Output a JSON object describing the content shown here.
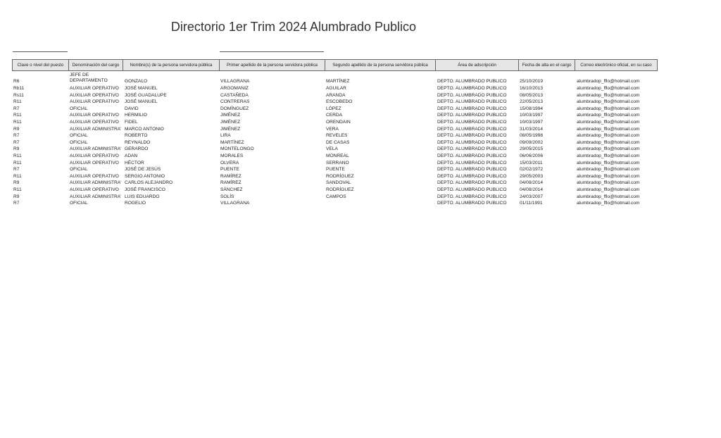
{
  "title": "Directorio 1er Trim 2024 Alumbrado Publico",
  "headers": [
    "Clave o nivel del puesto",
    "Denominación del cargo",
    "Nombre(s) de la persona servidora pública",
    "Primer apellido de la persona servidora pública",
    "Segundo apellido de la persona servidora pública",
    "Área de adscripción",
    "Fecha de alta en el cargo",
    "Correo electrónico oficial, en su caso"
  ],
  "rows": [
    [
      "R6",
      "JEFE DE DEPARTAMENTO",
      "GONZALO",
      "VILLAGRANA",
      " MARTÍNEZ",
      "DEPTO. ALUMBRADO PUBLICO",
      "25/10/2019",
      "alumbradop_fflo@hotmail.com"
    ],
    [
      "Rb11",
      "AUXILIAR  OPERATIVO",
      "JOSÉ MANUEL",
      "ARGOMANIZ",
      "AGUILAR",
      "DEPTO. ALUMBRADO PUBLICO",
      "16/10/2013",
      "alumbradop_fflo@hotmail.com"
    ],
    [
      "Rs11",
      "AUXILIAR  OPERATIVO",
      "JOSÉ GUADALUPE",
      "CASTAÑEDA",
      "ARANDA",
      "DEPTO. ALUMBRADO PUBLICO",
      "08/05/2013",
      "alumbradop_fflo@hotmail.com"
    ],
    [
      "R11",
      "AUXILIAR  OPERATIVO",
      "JOSÉ MANUEL",
      "CONTRERAS",
      " ESCOBEDO",
      "DEPTO. ALUMBRADO PUBLICO",
      "22/05/2013",
      "alumbradop_fflo@hotmail.com"
    ],
    [
      "R7",
      "OFICIAL",
      "DAVID",
      "DOMÍNGUEZ",
      "LÓPEZ",
      "DEPTO. ALUMBRADO PUBLICO",
      "15/08/1994",
      "alumbradop_fflo@hotmail.com"
    ],
    [
      "R11",
      "AUXILIAR  OPERATIVO",
      "HERMILIO",
      "JIMÉNEZ",
      "CERDA",
      "DEPTO. ALUMBRADO PUBLICO",
      "10/03/1997",
      "alumbradop_fflo@hotmail.com"
    ],
    [
      "R11",
      "AUXILIAR  OPERATIVO",
      "FIDEL",
      "JIMÉNEZ",
      " ORENDAIN",
      "DEPTO. ALUMBRADO PUBLICO",
      "10/03/1997",
      "alumbradop_fflo@hotmail.com"
    ],
    [
      "R9",
      "AUXILIAR  ADMINISTRA'",
      "MARCO ANTONIO",
      "JIMÉNEZ",
      "VERA",
      "DEPTO. ALUMBRADO PUBLICO",
      "31/03/2014",
      "alumbradop_fflo@hotmail.com"
    ],
    [
      "R7",
      "OFICIAL",
      "ROBERTO",
      "LIRA",
      "REVELES",
      "DEPTO. ALUMBRADO PUBLICO",
      "08/05/1998",
      "alumbradop_fflo@hotmail.com"
    ],
    [
      "R7",
      "OFICIAL",
      "REYNALDO",
      "MARTÍNEZ",
      "DE CASAS",
      "DEPTO. ALUMBRADO PUBLICO",
      "09/09/2002",
      "alumbradop_fflo@hotmail.com"
    ],
    [
      "R9",
      "AUXILIAR  ADMINISTRA'",
      "GERARDO",
      "MONTELONGO",
      " VELA",
      "DEPTO. ALUMBRADO PUBLICO",
      "29/05/2015",
      "alumbradop_fflo@hotmail.com"
    ],
    [
      "R11",
      "AUXILIAR  OPERATIVO",
      "ADAN",
      "MORALES",
      " MONREAL",
      "DEPTO. ALUMBRADO PUBLICO",
      "06/06/2006",
      "alumbradop_fflo@hotmail.com"
    ],
    [
      "R11",
      "AUXILIAR  OPERATIVO",
      "HÉCTOR",
      "OLVERA",
      "SERRANO",
      "DEPTO. ALUMBRADO PUBLICO",
      "15/03/2011",
      "alumbradop_fflo@hotmail.com"
    ],
    [
      "R7",
      "OFICIAL",
      "JOSÉ DE JESÚS",
      "PUENTE",
      "PUENTE",
      "DEPTO. ALUMBRADO PUBLICO",
      "02/02/1972",
      "alumbradop_fflo@hotmail.com"
    ],
    [
      "R11",
      "AUXILIAR  OPERATIVO",
      "SERGIO ANTONIO",
      "RAMÍREZ",
      "RODRÍGUEZ",
      "DEPTO. ALUMBRADO PUBLICO",
      "29/05/2003",
      "alumbradop_fflo@hotmail.com"
    ],
    [
      "R9",
      "AUXILIAR  ADMINISTRA'",
      "CARLOS ALEJANDRO",
      "RAMÍREZ",
      "SANDOVAL",
      "DEPTO. ALUMBRADO PUBLICO",
      "04/08/2014",
      "alumbradop_fflo@hotmail.com"
    ],
    [
      "R11",
      "AUXILIAR  OPERATIVO",
      "JOSÉ FRANCISCO",
      "SÁNCHEZ",
      "RODRÍGUEZ",
      "DEPTO. ALUMBRADO PUBLICO",
      "04/08/2014",
      "alumbradop_fflo@hotmail.com"
    ],
    [
      "R9",
      "AUXILIAR  ADMINISTRA'",
      "LUIS EDUARDO",
      "SOLÍS",
      "CAMPOS",
      "DEPTO. ALUMBRADO PUBLICO",
      "24/03/2007",
      "alumbradop_fflo@hotmail.com"
    ],
    [
      "R7",
      "OFICIAL",
      "ROGELIO",
      "VILLAGRANA",
      "",
      "DEPTO. ALUMBRADO PUBLICO",
      "01/11/1991",
      "alumbradop_fflo@hotmail.com"
    ]
  ]
}
